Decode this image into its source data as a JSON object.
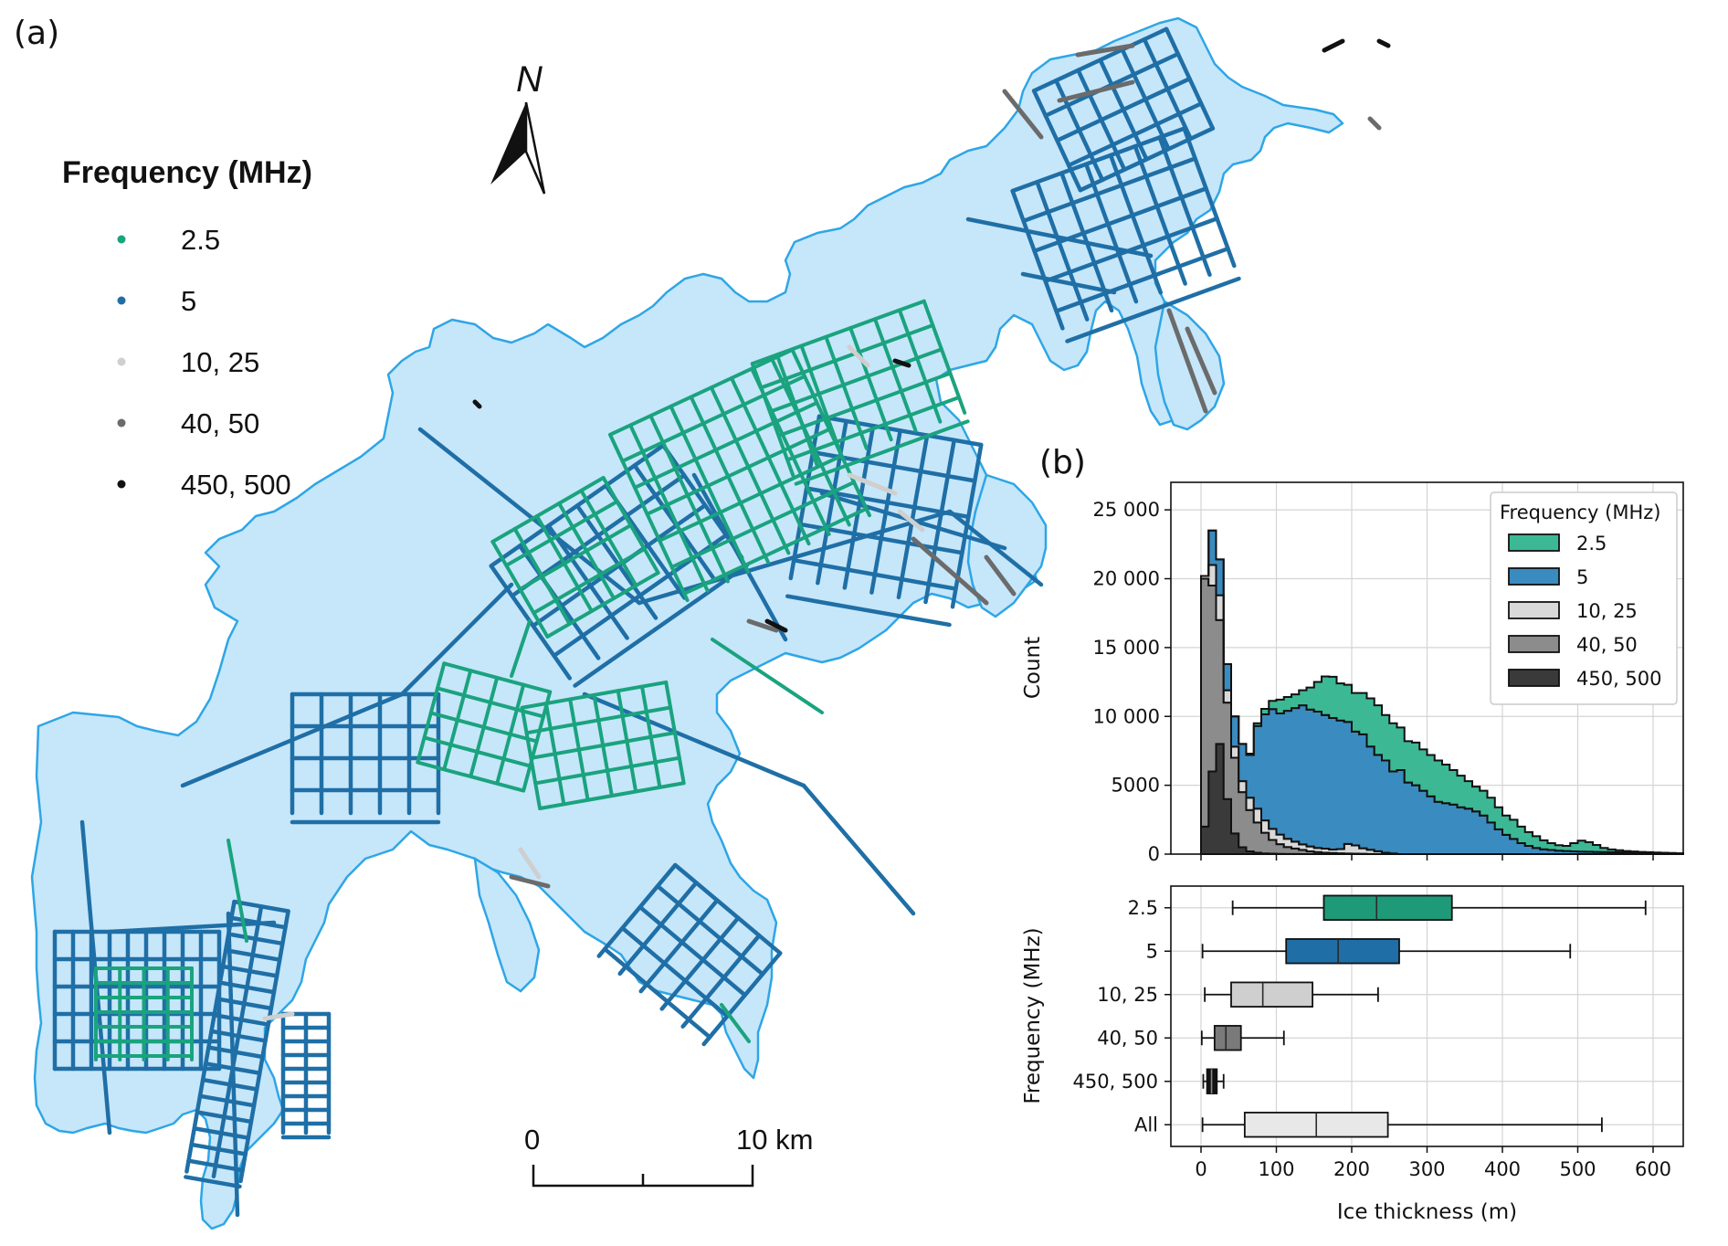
{
  "map_panel": {
    "label": "(a)",
    "legend_title": "Frequency (MHz)",
    "legend_items": [
      {
        "label": "2.5",
        "color": "#1aa37e"
      },
      {
        "label": "5",
        "color": "#1f6fa6"
      },
      {
        "label": "10, 25",
        "color": "#cfcfcf"
      },
      {
        "label": "40, 50",
        "color": "#6b6b6b"
      },
      {
        "label": "450, 500",
        "color": "#111111"
      }
    ],
    "north_label": "N",
    "scale_bar": {
      "start_label": "0",
      "end_label": "10 km"
    },
    "ice_fill_color": "#c6e6fa",
    "ice_outline_color": "#2ea6e6"
  },
  "chart_data": [
    {
      "type": "area",
      "panel_label": "(b)",
      "xlabel": "",
      "ylabel": "Count",
      "xlim": [
        -40,
        640
      ],
      "ylim": [
        0,
        27000
      ],
      "xticks": [
        0,
        100,
        200,
        300,
        400,
        500,
        600
      ],
      "yticks": [
        0,
        5000,
        10000,
        15000,
        20000,
        25000
      ],
      "ytick_labels": [
        "0",
        "5000",
        "10 000",
        "15 000",
        "20 000",
        "25 000"
      ],
      "grid": true,
      "stacked": true,
      "legend": {
        "title": "Frequency (MHz)",
        "placement": "top-right"
      },
      "bin_width": 10,
      "x": [
        0,
        10,
        20,
        30,
        40,
        50,
        60,
        70,
        80,
        90,
        100,
        110,
        120,
        130,
        140,
        150,
        160,
        170,
        180,
        190,
        200,
        210,
        220,
        230,
        240,
        250,
        260,
        270,
        280,
        290,
        300,
        310,
        320,
        330,
        340,
        350,
        360,
        370,
        380,
        390,
        400,
        410,
        420,
        430,
        440,
        450,
        460,
        470,
        480,
        490,
        500,
        510,
        520,
        530,
        540,
        550,
        560,
        570,
        580,
        590,
        600,
        610,
        620,
        630
      ],
      "series": [
        {
          "name": "450, 500",
          "color": "#3a3a3a",
          "values": [
            2000,
            6000,
            8000,
            4000,
            1500,
            500,
            200,
            100,
            50,
            30,
            20,
            10,
            5,
            3,
            2,
            1,
            1,
            1,
            1,
            1,
            1,
            1,
            1,
            1,
            1,
            0,
            0,
            0,
            0,
            0,
            0,
            0,
            0,
            0,
            0,
            0,
            0,
            0,
            0,
            0,
            0,
            0,
            0,
            0,
            0,
            0,
            0,
            0,
            0,
            0,
            0,
            0,
            0,
            0,
            0,
            0,
            0,
            0,
            0,
            0,
            0,
            0,
            0,
            0
          ]
        },
        {
          "name": "40, 50",
          "color": "#8c8c8c",
          "values": [
            18000,
            13500,
            9000,
            7000,
            5500,
            4000,
            3000,
            2200,
            1500,
            1000,
            700,
            500,
            400,
            300,
            200,
            150,
            100,
            80,
            60,
            40,
            30,
            20,
            10,
            5,
            2,
            1,
            0,
            0,
            0,
            0,
            0,
            0,
            0,
            0,
            0,
            0,
            0,
            0,
            0,
            0,
            0,
            0,
            0,
            0,
            0,
            0,
            0,
            0,
            0,
            0,
            0,
            0,
            0,
            0,
            0,
            0,
            0,
            0,
            0,
            0,
            0,
            0,
            0,
            0
          ]
        },
        {
          "name": "10, 25",
          "color": "#d9d9d9",
          "values": [
            200,
            1500,
            1800,
            900,
            800,
            800,
            900,
            1000,
            900,
            800,
            700,
            600,
            500,
            400,
            350,
            300,
            300,
            250,
            300,
            700,
            600,
            400,
            300,
            200,
            100,
            50,
            0,
            0,
            0,
            0,
            0,
            0,
            0,
            0,
            0,
            0,
            0,
            0,
            0,
            0,
            0,
            0,
            0,
            0,
            0,
            0,
            0,
            0,
            0,
            0,
            0,
            0,
            0,
            0,
            0,
            0,
            0,
            0,
            0,
            0,
            0,
            0,
            0,
            0
          ]
        },
        {
          "name": "5",
          "color": "#3a8bbf",
          "values": [
            0,
            2500,
            2600,
            1900,
            2200,
            2700,
            3100,
            6000,
            7700,
            8700,
            8800,
            9300,
            9700,
            10100,
            9950,
            9900,
            9700,
            9550,
            9340,
            8860,
            8270,
            8280,
            7500,
            7000,
            6700,
            5950,
            6100,
            5200,
            5000,
            4600,
            4200,
            3800,
            3700,
            3600,
            3400,
            3300,
            3100,
            2800,
            2300,
            1800,
            1400,
            1100,
            800,
            600,
            450,
            350,
            300,
            250,
            220,
            200,
            180,
            170,
            160,
            150,
            140,
            130,
            120,
            110,
            100,
            90,
            80,
            70,
            60,
            50
          ]
        },
        {
          "name": "2.5",
          "color": "#3cb895",
          "values": [
            0,
            0,
            0,
            0,
            0,
            0,
            100,
            200,
            400,
            600,
            1000,
            1000,
            1000,
            1100,
            1600,
            2150,
            2800,
            3000,
            2700,
            2700,
            2800,
            3000,
            3500,
            3600,
            3300,
            3500,
            3100,
            3000,
            3100,
            3000,
            3000,
            3000,
            2800,
            2500,
            2300,
            2000,
            1800,
            1800,
            1800,
            1600,
            1400,
            1400,
            1200,
            1000,
            850,
            650,
            500,
            400,
            380,
            600,
            800,
            700,
            500,
            300,
            200,
            150,
            100,
            80,
            60,
            50,
            40,
            30,
            20,
            10
          ]
        }
      ]
    },
    {
      "type": "box",
      "xlabel": "Ice thickness (m)",
      "ylabel": "Frequency (MHz)",
      "xlim": [
        -40,
        640
      ],
      "xticks": [
        0,
        100,
        200,
        300,
        400,
        500,
        600
      ],
      "grid": true,
      "categories": [
        "2.5",
        "5",
        "10, 25",
        "40, 50",
        "450, 500",
        "All"
      ],
      "boxes": [
        {
          "category": "2.5",
          "whisker_low": 42,
          "q1": 163,
          "median": 233,
          "q3": 333,
          "whisker_high": 590,
          "color": "#1e9a78"
        },
        {
          "category": "5",
          "whisker_low": 2,
          "q1": 113,
          "median": 182,
          "q3": 263,
          "whisker_high": 490,
          "color": "#1f6fa6"
        },
        {
          "category": "10, 25",
          "whisker_low": 5,
          "q1": 40,
          "median": 82,
          "q3": 148,
          "whisker_high": 235,
          "color": "#cfcfcf"
        },
        {
          "category": "40, 50",
          "whisker_low": 1,
          "q1": 18,
          "median": 33,
          "q3": 53,
          "whisker_high": 110,
          "color": "#7a7a7a"
        },
        {
          "category": "450, 500",
          "whisker_low": 3,
          "q1": 8,
          "median": 14,
          "q3": 21,
          "whisker_high": 30,
          "color": "#111111"
        },
        {
          "category": "All",
          "whisker_low": 2,
          "q1": 58,
          "median": 153,
          "q3": 248,
          "whisker_high": 532,
          "color": "#e8e8e8"
        }
      ]
    }
  ]
}
